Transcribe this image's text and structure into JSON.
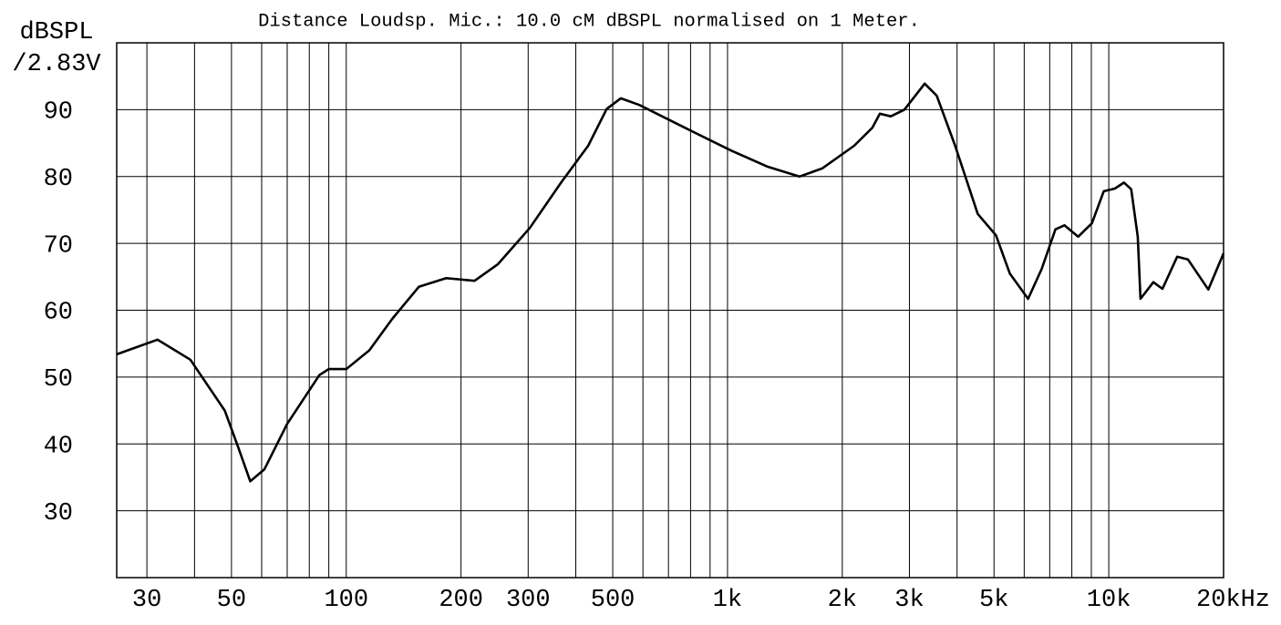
{
  "chart_data": {
    "type": "line",
    "title": "Distance Loudsp. Mic.: 10.0 cM dBSPL normalised on 1 Meter.",
    "y_label": [
      "dBSPL",
      "/2.83V"
    ],
    "log_x": true,
    "grid": true,
    "xlim": [
      25,
      20000
    ],
    "ylim": [
      20,
      100
    ],
    "xticks": [
      30,
      50,
      100,
      200,
      300,
      500,
      {
        "value": 1000,
        "label": "1k"
      },
      {
        "value": 2000,
        "label": "2k"
      },
      {
        "value": 3000,
        "label": "3k"
      },
      {
        "value": 5000,
        "label": "5k"
      },
      {
        "value": 10000,
        "label": "10k"
      },
      {
        "value": 20000,
        "label": "20kHz"
      }
    ],
    "xminor_ticks": [
      40,
      60,
      70,
      80,
      90,
      400,
      600,
      700,
      800,
      900,
      4000,
      6000,
      7000,
      8000,
      9000
    ],
    "yticks": [
      30,
      40,
      50,
      60,
      70,
      80,
      90
    ],
    "series": [
      {
        "color": "#000000",
        "x": [
          25,
          32,
          39,
          48,
          52,
          56,
          61,
          70,
          85,
          90,
          100,
          115,
          132,
          155,
          183,
          217,
          250,
          303,
          366,
          431,
          482,
          525,
          587,
          773,
          1020,
          1270,
          1544,
          1771,
          2148,
          2398,
          2509,
          2680,
          2910,
          3290,
          3538,
          3953,
          4532,
          5060,
          5500,
          6142,
          6670,
          7245,
          7650,
          8310,
          9030,
          9700,
          10370,
          10960,
          11450,
          11910,
          12110,
          13090,
          13830,
          15110,
          16130,
          18240,
          20000
        ],
        "values": [
          53.4,
          55.6,
          52.6,
          45,
          39.6,
          34.4,
          36.2,
          43,
          50.3,
          51.2,
          51.2,
          54,
          58.7,
          63.5,
          64.8,
          64.4,
          66.9,
          72.3,
          79.1,
          84.6,
          90.1,
          91.7,
          90.7,
          87.3,
          83.9,
          81.5,
          80,
          81.2,
          84.6,
          87.3,
          89.4,
          89,
          90,
          93.9,
          92.1,
          84.6,
          74.4,
          71.2,
          65.5,
          61.7,
          66.2,
          72.1,
          72.7,
          71,
          73,
          77.8,
          78.2,
          79.1,
          78.1,
          71,
          61.7,
          64.2,
          63.2,
          68,
          67.6,
          63.1,
          68.5
        ]
      }
    ]
  }
}
